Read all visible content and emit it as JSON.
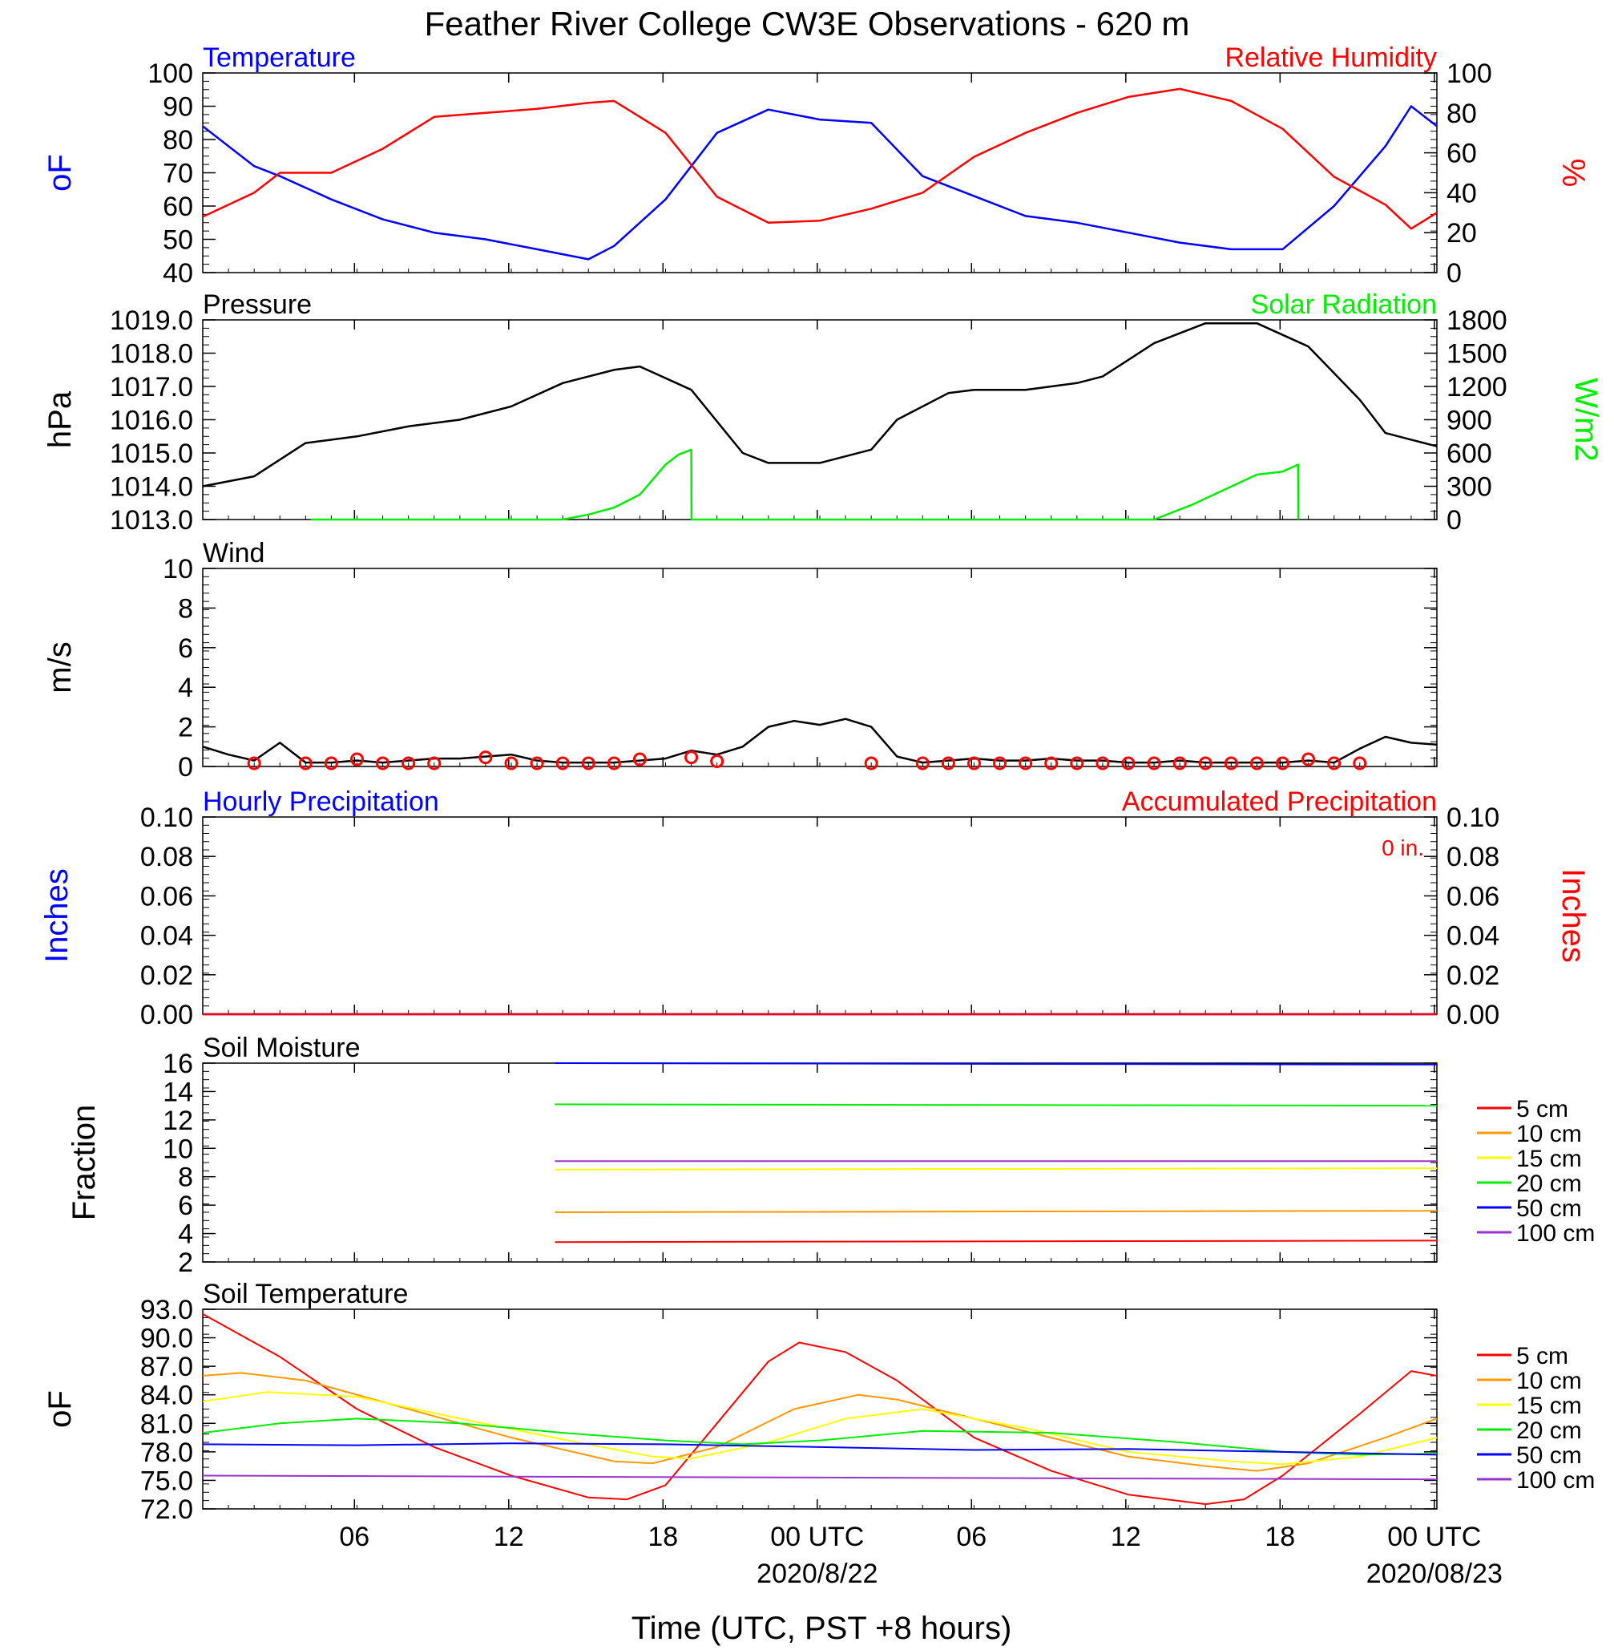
{
  "title": "Feather River College CW3E Observations - 620 m",
  "xaxis": {
    "label": "Time (UTC, PST +8 hours)",
    "ticks": [
      "06",
      "12",
      "18",
      "00 UTC",
      "06",
      "12",
      "18",
      "00 UTC"
    ],
    "dates": [
      "2020/8/22",
      "2020/08/23"
    ]
  },
  "legend_labels": [
    "5 cm",
    "10 cm",
    "15 cm",
    "20 cm",
    "50 cm",
    "100 cm"
  ],
  "colors": {
    "blue": "#0000ff",
    "red": "#ff0000",
    "green": "#00ee00",
    "black": "#000000",
    "orange": "#ff9900",
    "yellow": "#ffff00",
    "purple": "#9933cc"
  },
  "chart_data": [
    {
      "type": "line",
      "panel": "temperature-humidity",
      "left_title": "Temperature",
      "right_title": "Relative Humidity",
      "ylabel": "oF",
      "y2label": "%",
      "ylim": [
        40,
        100
      ],
      "y2lim": [
        0,
        100
      ],
      "yticks": [
        "100",
        "90",
        "80",
        "70",
        "60",
        "50",
        "40"
      ],
      "y2ticks": [
        "100",
        "80",
        "60",
        "40",
        "20",
        "0"
      ],
      "x_hours": [
        0,
        2,
        3,
        5,
        7,
        9,
        11,
        13,
        15,
        16,
        18,
        20,
        22,
        24,
        26,
        28,
        30,
        32,
        34,
        36,
        38,
        40,
        42,
        44,
        46,
        47,
        48
      ],
      "series": [
        {
          "name": "Temperature",
          "color": "#0000ff",
          "axis": "left",
          "values": [
            84,
            72,
            69,
            62,
            56,
            52,
            50,
            47,
            44,
            48,
            62,
            82,
            89,
            86,
            85,
            69,
            63,
            57,
            55,
            52,
            49,
            47,
            47,
            60,
            78,
            90,
            84
          ]
        },
        {
          "name": "Relative Humidity",
          "color": "#ff0000",
          "axis": "right",
          "values": [
            28,
            40,
            50,
            50,
            62,
            78,
            80,
            82,
            85,
            86,
            70,
            38,
            25,
            26,
            32,
            40,
            58,
            70,
            80,
            88,
            92,
            86,
            72,
            48,
            34,
            22,
            30
          ]
        }
      ]
    },
    {
      "type": "line",
      "panel": "pressure-solar",
      "left_title": "Pressure",
      "right_title": "Solar Radiation",
      "ylabel": "hPa",
      "y2label": "W/m2",
      "ylim": [
        1013.0,
        1019.0
      ],
      "y2lim": [
        0,
        2000
      ],
      "yticks": [
        "1019.0",
        "1018.0",
        "1017.0",
        "1016.0",
        "1015.0",
        "1014.0",
        "1013.0"
      ],
      "y2ticks": [
        "1800",
        "1500",
        "1200",
        "900",
        "600",
        "300",
        "0"
      ],
      "series": [
        {
          "name": "Pressure",
          "color": "#000000",
          "axis": "left",
          "x": [
            0,
            2,
            4,
            6,
            8,
            10,
            12,
            14,
            16,
            17,
            19,
            21,
            22,
            24,
            26,
            27,
            29,
            30,
            32,
            34,
            35,
            37,
            39,
            41,
            43,
            45,
            46,
            47,
            48
          ],
          "values": [
            1014.0,
            1014.3,
            1015.3,
            1015.5,
            1015.8,
            1016.0,
            1016.4,
            1017.1,
            1017.5,
            1017.6,
            1016.9,
            1015.0,
            1014.7,
            1014.7,
            1015.1,
            1016.0,
            1016.8,
            1016.9,
            1016.9,
            1017.1,
            1017.3,
            1018.3,
            1018.9,
            1018.9,
            1018.2,
            1016.6,
            1015.6,
            1015.4,
            1015.2
          ]
        },
        {
          "name": "Solar Radiation",
          "color": "#00ee00",
          "axis": "right",
          "x": [
            4.2,
            12.5,
            14,
            15,
            16,
            17,
            17.5,
            18,
            18.5,
            19,
            19.01,
            27.5,
            37,
            38.5,
            40,
            41,
            42,
            42.6,
            42.61
          ],
          "values": [
            0,
            0,
            0,
            50,
            120,
            250,
            400,
            550,
            650,
            700,
            0,
            0,
            0,
            150,
            330,
            450,
            480,
            550,
            0
          ]
        }
      ]
    },
    {
      "type": "line",
      "panel": "wind",
      "left_title": "Wind",
      "ylabel": "m/s",
      "ylim": [
        0,
        10
      ],
      "yticks": [
        "10",
        "8",
        "6",
        "4",
        "2",
        "0"
      ],
      "series": [
        {
          "name": "Wind speed",
          "color": "#000000",
          "x": [
            0,
            1,
            2,
            3,
            4,
            5,
            6,
            7,
            8,
            9,
            10,
            11,
            12,
            13,
            14,
            15,
            16,
            17,
            18,
            19,
            20,
            21,
            22,
            23,
            24,
            25,
            26,
            27,
            28,
            29,
            30,
            31,
            32,
            33,
            34,
            35,
            36,
            37,
            38,
            39,
            40,
            41,
            42,
            43,
            44,
            45,
            46,
            47,
            48
          ],
          "values": [
            1.0,
            0.6,
            0.3,
            1.2,
            0.2,
            0.2,
            0.3,
            0.2,
            0.3,
            0.4,
            0.4,
            0.5,
            0.6,
            0.3,
            0.2,
            0.2,
            0.2,
            0.3,
            0.4,
            0.8,
            0.6,
            1.0,
            2.0,
            2.3,
            2.1,
            2.4,
            2.0,
            0.5,
            0.2,
            0.3,
            0.4,
            0.3,
            0.3,
            0.4,
            0.3,
            0.3,
            0.2,
            0.2,
            0.3,
            0.2,
            0.2,
            0.2,
            0.2,
            0.3,
            0.2,
            0.9,
            1.5,
            1.2,
            1.1
          ]
        },
        {
          "name": "Wind direction markers",
          "color": "#ff0000",
          "marker": "circle",
          "x": [
            2,
            4,
            5,
            6,
            7,
            8,
            9,
            11,
            12,
            13,
            14,
            15,
            16,
            17,
            19,
            20,
            26,
            28,
            29,
            30,
            31,
            32,
            33,
            34,
            35,
            36,
            37,
            38,
            39,
            40,
            41,
            42,
            43,
            44,
            45
          ],
          "values": [
            0,
            0,
            0,
            0.2,
            0,
            0,
            0,
            0.3,
            0,
            0,
            0,
            0,
            0,
            0.2,
            0.3,
            0.1,
            0,
            0,
            0,
            0,
            0,
            0,
            0,
            0,
            0,
            0,
            0,
            0,
            0,
            0,
            0,
            0,
            0.2,
            0,
            0
          ]
        }
      ]
    },
    {
      "type": "line",
      "panel": "precipitation",
      "left_title": "Hourly Precipitation",
      "right_title": "Accumulated Precipitation",
      "annotation": "0 in.",
      "ylabel": "Inches",
      "y2label": "Inches",
      "ylim": [
        0,
        0.1
      ],
      "y2lim": [
        0,
        0.1
      ],
      "yticks": [
        "0.10",
        "0.08",
        "0.06",
        "0.04",
        "0.02",
        "0.00"
      ],
      "y2ticks": [
        "0.10",
        "0.08",
        "0.06",
        "0.04",
        "0.02",
        "0.00"
      ],
      "series": [
        {
          "name": "Hourly Precipitation",
          "color": "#0000ff",
          "x": [
            0,
            48
          ],
          "values": [
            0,
            0
          ]
        },
        {
          "name": "Accumulated Precipitation",
          "color": "#ff0000",
          "x": [
            0,
            48
          ],
          "values": [
            0,
            0
          ]
        }
      ]
    },
    {
      "type": "line",
      "panel": "soil-moisture",
      "left_title": "Soil Moisture",
      "ylabel": "Fraction",
      "ylim": [
        2,
        16
      ],
      "yticks": [
        "16",
        "14",
        "12",
        "10",
        "8",
        "6",
        "4",
        "2"
      ],
      "series": [
        {
          "name": "5 cm",
          "color": "#ff0000",
          "x": [
            13.7,
            48
          ],
          "values": [
            3.4,
            3.5
          ]
        },
        {
          "name": "10 cm",
          "color": "#ff9900",
          "x": [
            13.7,
            48
          ],
          "values": [
            5.5,
            5.6
          ]
        },
        {
          "name": "15 cm",
          "color": "#ffff00",
          "x": [
            13.7,
            48
          ],
          "values": [
            8.5,
            8.6
          ]
        },
        {
          "name": "20 cm",
          "color": "#00ee00",
          "x": [
            13.7,
            48
          ],
          "values": [
            13.1,
            13.0
          ]
        },
        {
          "name": "50 cm",
          "color": "#0000ff",
          "x": [
            13.7,
            48
          ],
          "values": [
            16.0,
            15.9
          ]
        },
        {
          "name": "100 cm",
          "color": "#9933cc",
          "x": [
            13.7,
            48
          ],
          "values": [
            9.1,
            9.1
          ]
        }
      ]
    },
    {
      "type": "line",
      "panel": "soil-temperature",
      "left_title": "Soil Temperature",
      "ylabel": "oF",
      "ylim": [
        72.0,
        93.0
      ],
      "yticks": [
        "93.0",
        "90.0",
        "87.0",
        "84.0",
        "81.0",
        "78.0",
        "75.0",
        "72.0"
      ],
      "series": [
        {
          "name": "5 cm",
          "color": "#ff0000",
          "x": [
            0,
            3,
            6,
            9,
            12,
            15,
            16.5,
            18,
            20,
            22,
            23.2,
            25,
            27,
            30,
            33,
            36,
            39,
            40.5,
            42,
            45,
            47,
            48
          ],
          "values": [
            92.5,
            88,
            82.5,
            78.5,
            75.5,
            73.2,
            73,
            74.5,
            81,
            87.5,
            89.5,
            88.5,
            85.5,
            79.5,
            76,
            73.5,
            72.5,
            73,
            75.5,
            82,
            86.5,
            86
          ]
        },
        {
          "name": "10 cm",
          "color": "#ff9900",
          "x": [
            0,
            1.5,
            4,
            8,
            12,
            16,
            17.5,
            20,
            23,
            25.5,
            27,
            30,
            33,
            36,
            39,
            41,
            43,
            46,
            48
          ],
          "values": [
            86,
            86.3,
            85.5,
            82.5,
            79.5,
            77,
            76.8,
            78.5,
            82.5,
            84,
            83.5,
            81.5,
            79.5,
            77.5,
            76.5,
            76,
            76.8,
            79.5,
            81.5
          ]
        },
        {
          "name": "15 cm",
          "color": "#ffff00",
          "x": [
            0,
            2.5,
            6,
            10,
            14,
            17.5,
            19,
            22,
            25,
            28,
            32,
            36,
            40,
            42,
            45,
            48
          ],
          "values": [
            83.3,
            84.3,
            83.8,
            81.5,
            79.3,
            77.5,
            77.3,
            79,
            81.5,
            82.5,
            80.5,
            78,
            77,
            76.7,
            77.5,
            79.5
          ]
        },
        {
          "name": "20 cm",
          "color": "#00ee00",
          "x": [
            0,
            3,
            6,
            10,
            14,
            18,
            21,
            24,
            28,
            33,
            38,
            42,
            45,
            48
          ],
          "values": [
            80,
            81,
            81.5,
            81,
            80,
            79.2,
            78.8,
            79.2,
            80.2,
            80,
            79,
            78,
            77.7,
            77.8
          ]
        },
        {
          "name": "50 cm",
          "color": "#0000ff",
          "x": [
            0,
            6,
            12,
            18,
            24,
            30,
            36,
            42,
            48
          ],
          "values": [
            78.8,
            78.7,
            78.9,
            78.8,
            78.5,
            78.2,
            78.3,
            78,
            77.7
          ]
        },
        {
          "name": "100 cm",
          "color": "#9933cc",
          "x": [
            0,
            12,
            24,
            36,
            48
          ],
          "values": [
            75.5,
            75.4,
            75.3,
            75.2,
            75.1
          ]
        }
      ]
    }
  ]
}
